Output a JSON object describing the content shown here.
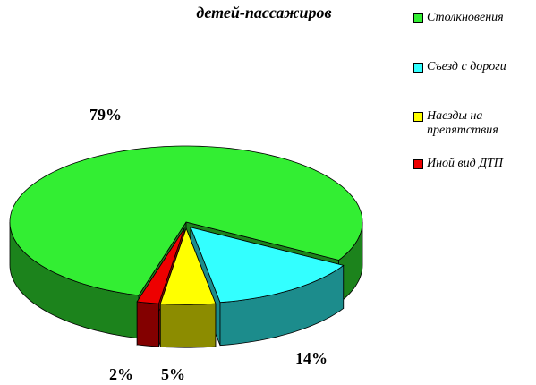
{
  "chart_data": {
    "type": "pie",
    "title": "детей-пассажиров",
    "categories": [
      "Столкновения",
      "Съезд с дороги",
      "Наезды  на препятствия",
      "Иной вид ДТП"
    ],
    "values": [
      79,
      14,
      5,
      2
    ],
    "value_labels": [
      "79%",
      "14%",
      "5%",
      "2%"
    ],
    "colors": [
      "#33ee33",
      "#33ffff",
      "#ffff00",
      "#ee0000"
    ],
    "legend": "right"
  }
}
